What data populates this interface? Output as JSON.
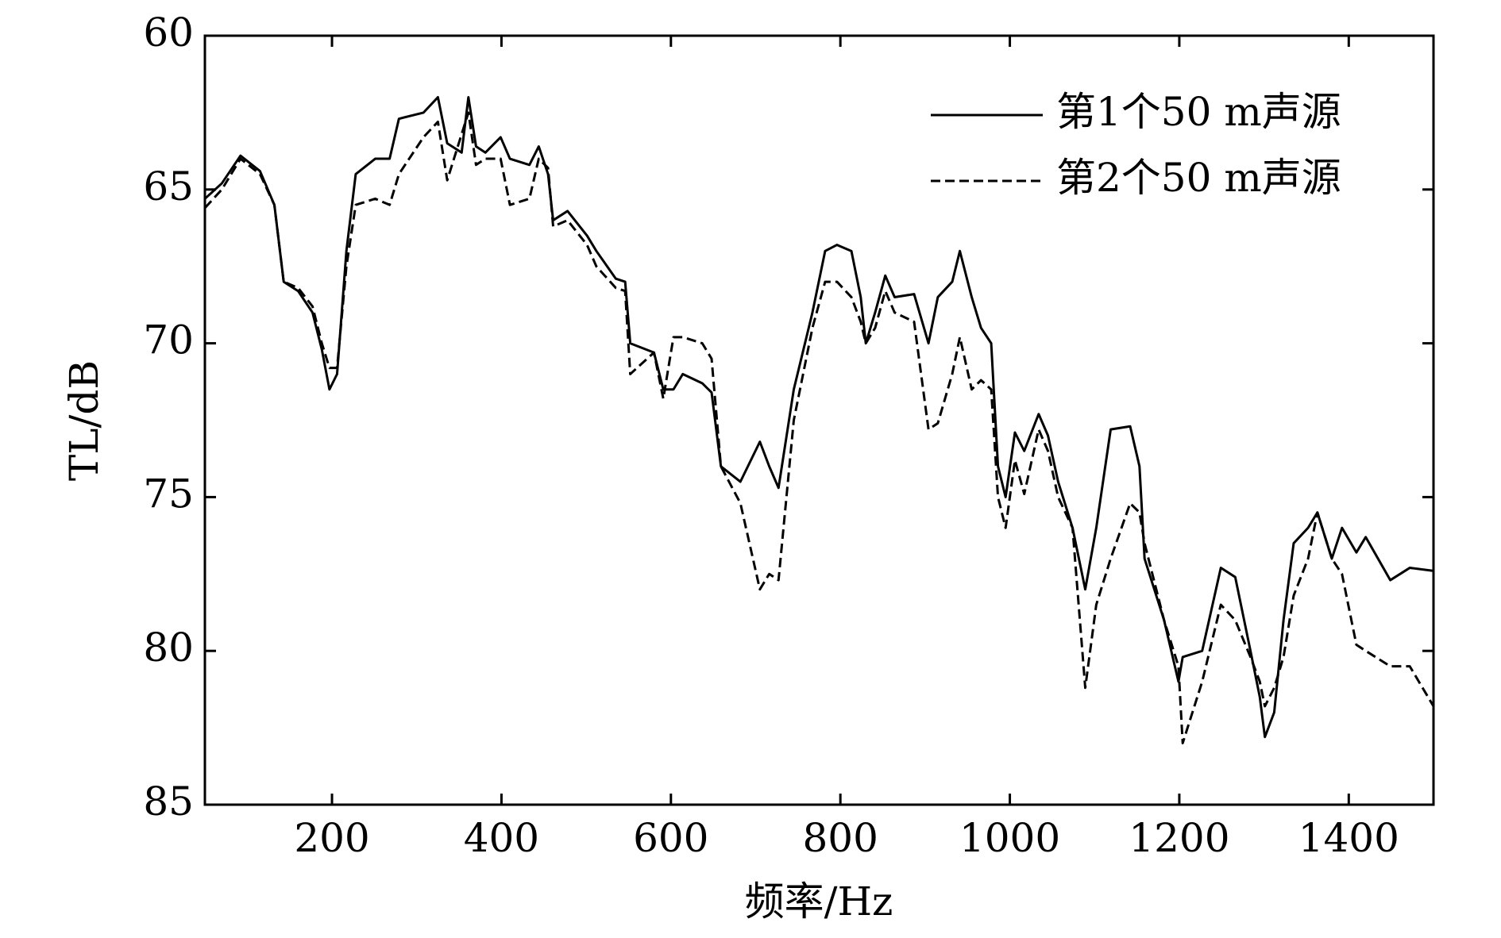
{
  "chart_data": {
    "type": "line",
    "x_label": "频率/Hz",
    "y_label": "TL/dB",
    "x": [
      50,
      70,
      92,
      115,
      132,
      143,
      160,
      177,
      188,
      197,
      206,
      217,
      228,
      251,
      268,
      279,
      308,
      325,
      336,
      353,
      361,
      370,
      381,
      399,
      410,
      433,
      444,
      455,
      461,
      478,
      501,
      512,
      535,
      546,
      552,
      580,
      591,
      603,
      614,
      637,
      648,
      659,
      682,
      705,
      716,
      727,
      745,
      767,
      782,
      796,
      813,
      824,
      830,
      841,
      853,
      864,
      887,
      904,
      915,
      932,
      941,
      955,
      966,
      978,
      986,
      995,
      1006,
      1017,
      1034,
      1045,
      1057,
      1074,
      1089,
      1102,
      1119,
      1142,
      1153,
      1159,
      1182,
      1199,
      1204,
      1227,
      1249,
      1266,
      1284,
      1295,
      1301,
      1312,
      1323,
      1335,
      1352,
      1363,
      1380,
      1392,
      1409,
      1420,
      1449,
      1472,
      1500
    ],
    "series": [
      {
        "name": "第1个50 m声源",
        "color": "#000000",
        "style": "solid",
        "values": [
          65.3,
          64.8,
          63.9,
          64.4,
          65.5,
          68,
          68.3,
          69.0,
          70.2,
          71.5,
          71.0,
          67.0,
          64.5,
          64.0,
          64.0,
          62.7,
          62.5,
          62.0,
          63.5,
          63.8,
          62.0,
          63.6,
          63.8,
          63.3,
          64.0,
          64.2,
          63.6,
          64.5,
          66.0,
          65.7,
          66.5,
          67.0,
          67.9,
          68.0,
          70.0,
          70.3,
          71.5,
          71.5,
          71.0,
          71.3,
          71.6,
          74.0,
          74.5,
          73.2,
          74.0,
          74.7,
          71.5,
          69.0,
          67.0,
          66.8,
          67.0,
          68.5,
          70.0,
          69.0,
          67.8,
          68.5,
          68.4,
          70.0,
          68.5,
          68.0,
          67.0,
          68.5,
          69.5,
          70.0,
          74.0,
          75.0,
          72.9,
          73.5,
          72.3,
          73.0,
          74.5,
          76.0,
          78.0,
          76.0,
          72.8,
          72.7,
          74.0,
          77.0,
          79.0,
          81.0,
          80.2,
          80.0,
          77.3,
          77.6,
          80.0,
          81.5,
          82.8,
          82.0,
          79.0,
          76.5,
          76.0,
          75.5,
          77.0,
          76.0,
          76.8,
          76.3,
          77.7,
          77.3,
          77.4
        ]
      },
      {
        "name": "第2个50 m声源",
        "color": "#000000",
        "style": "dashed",
        "values": [
          65.6,
          65.0,
          64.0,
          64.5,
          65.5,
          68.0,
          68.2,
          68.8,
          70.0,
          70.8,
          70.8,
          67.5,
          65.5,
          65.3,
          65.5,
          64.5,
          63.3,
          62.8,
          64.7,
          63.2,
          62.5,
          64.2,
          64.0,
          64.0,
          65.5,
          65.3,
          64.0,
          64.3,
          66.2,
          66.0,
          66.8,
          67.5,
          68.2,
          68.3,
          71.0,
          70.3,
          71.8,
          69.8,
          69.8,
          70.0,
          70.5,
          74.0,
          75.2,
          78.0,
          77.5,
          77.7,
          72.5,
          69.5,
          68.0,
          68.0,
          68.5,
          69.3,
          70.0,
          69.5,
          68.3,
          69.0,
          69.3,
          72.8,
          72.6,
          71.0,
          69.8,
          71.5,
          71.2,
          71.5,
          75.0,
          76.0,
          73.8,
          74.9,
          72.8,
          73.5,
          75.0,
          76.0,
          81.2,
          78.5,
          77.0,
          75.2,
          75.5,
          76.5,
          79.0,
          80.5,
          83.0,
          81.0,
          78.5,
          79.0,
          80.2,
          81.0,
          81.8,
          81.2,
          80.2,
          78.2,
          77.0,
          75.5,
          77.0,
          77.5,
          79.8,
          80.0,
          80.5,
          80.5,
          81.8
        ]
      }
    ],
    "xlim": [
      50,
      1500
    ],
    "xticks": [
      200,
      400,
      600,
      800,
      1000,
      1200,
      1400
    ],
    "ylim": [
      60,
      85
    ],
    "yticks": [
      60,
      65,
      70,
      75,
      80,
      85
    ],
    "y_inverted": true,
    "grid": false,
    "legend": "upper right"
  }
}
